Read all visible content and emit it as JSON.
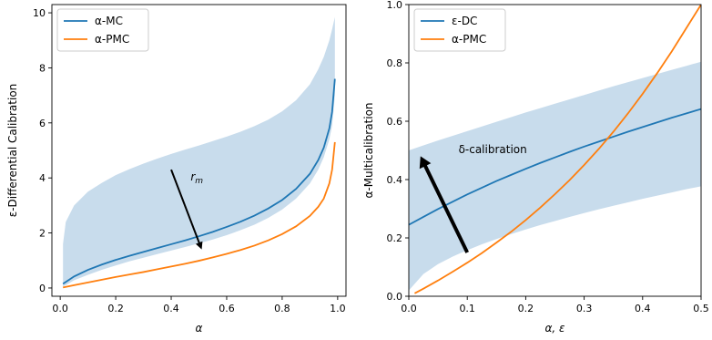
{
  "chart_data": [
    {
      "type": "line",
      "xlabel": "α",
      "ylabel": "ε-Differential Calibration",
      "xlim": [
        -0.03,
        1.03
      ],
      "ylim": [
        -0.3,
        10.3
      ],
      "xticks": [
        0.0,
        0.2,
        0.4,
        0.6,
        0.8,
        1.0
      ],
      "xtick_labels": [
        "0.0",
        "0.2",
        "0.4",
        "0.6",
        "0.8",
        "1.0"
      ],
      "yticks": [
        0,
        2,
        4,
        6,
        8,
        10
      ],
      "ytick_labels": [
        "0",
        "2",
        "4",
        "6",
        "8",
        "10"
      ],
      "grid": false,
      "legend_position": "top-left",
      "series": [
        {
          "name": "α-MC",
          "color": "#1f77b4",
          "x": [
            0.01,
            0.05,
            0.1,
            0.15,
            0.2,
            0.25,
            0.3,
            0.35,
            0.4,
            0.45,
            0.5,
            0.55,
            0.6,
            0.65,
            0.7,
            0.75,
            0.8,
            0.85,
            0.9,
            0.93,
            0.95,
            0.97,
            0.98,
            0.99
          ],
          "y": [
            0.15,
            0.42,
            0.66,
            0.85,
            1.02,
            1.17,
            1.31,
            1.45,
            1.59,
            1.73,
            1.88,
            2.04,
            2.22,
            2.41,
            2.63,
            2.89,
            3.2,
            3.6,
            4.15,
            4.65,
            5.1,
            5.8,
            6.4,
            7.6
          ]
        },
        {
          "name": "α-PMC",
          "color": "#ff7f0e",
          "x": [
            0.01,
            0.05,
            0.1,
            0.15,
            0.2,
            0.25,
            0.3,
            0.35,
            0.4,
            0.45,
            0.5,
            0.55,
            0.6,
            0.65,
            0.7,
            0.75,
            0.8,
            0.85,
            0.9,
            0.93,
            0.95,
            0.97,
            0.98,
            0.99
          ],
          "y": [
            0.02,
            0.1,
            0.2,
            0.3,
            0.4,
            0.49,
            0.58,
            0.68,
            0.78,
            0.88,
            0.99,
            1.11,
            1.24,
            1.38,
            1.54,
            1.73,
            1.96,
            2.24,
            2.62,
            2.95,
            3.25,
            3.8,
            4.3,
            5.3
          ]
        }
      ],
      "band": {
        "color": "#c8dcec",
        "x": [
          0.01,
          0.02,
          0.05,
          0.1,
          0.15,
          0.2,
          0.25,
          0.3,
          0.35,
          0.4,
          0.45,
          0.5,
          0.55,
          0.6,
          0.65,
          0.7,
          0.75,
          0.8,
          0.85,
          0.9,
          0.93,
          0.95,
          0.97,
          0.98,
          0.99
        ],
        "lower": [
          0.05,
          0.1,
          0.28,
          0.48,
          0.66,
          0.82,
          0.97,
          1.1,
          1.23,
          1.36,
          1.49,
          1.62,
          1.76,
          1.92,
          2.1,
          2.3,
          2.55,
          2.85,
          3.25,
          3.8,
          4.3,
          4.75,
          5.4,
          5.9,
          7.0
        ],
        "upper": [
          1.6,
          2.4,
          3.0,
          3.5,
          3.82,
          4.1,
          4.32,
          4.52,
          4.7,
          4.87,
          5.03,
          5.18,
          5.34,
          5.5,
          5.68,
          5.88,
          6.12,
          6.42,
          6.82,
          7.4,
          7.95,
          8.4,
          9.0,
          9.4,
          9.85
        ]
      },
      "arrow": {
        "from": [
          0.4,
          4.3
        ],
        "to": [
          0.51,
          1.4
        ]
      },
      "annotation": {
        "text": "r",
        "subscript": "m",
        "x": 0.47,
        "y": 3.9
      }
    },
    {
      "type": "line",
      "xlabel": "α, ε",
      "ylabel": "α-Multicalibration",
      "xlim": [
        0.0,
        0.5
      ],
      "ylim": [
        0.0,
        1.0
      ],
      "xticks": [
        0.0,
        0.1,
        0.2,
        0.3,
        0.4,
        0.5
      ],
      "xtick_labels": [
        "0.0",
        "0.1",
        "0.2",
        "0.3",
        "0.4",
        "0.5"
      ],
      "yticks": [
        0.0,
        0.2,
        0.4,
        0.6,
        0.8,
        1.0
      ],
      "ytick_labels": [
        "0.0",
        "0.2",
        "0.4",
        "0.6",
        "0.8",
        "1.0"
      ],
      "grid": false,
      "legend_position": "top-left",
      "series": [
        {
          "name": "ε-DC",
          "color": "#1f77b4",
          "x": [
            0.0,
            0.025,
            0.05,
            0.075,
            0.1,
            0.125,
            0.15,
            0.175,
            0.2,
            0.225,
            0.25,
            0.275,
            0.3,
            0.325,
            0.35,
            0.375,
            0.4,
            0.425,
            0.45,
            0.475,
            0.5
          ],
          "y": [
            0.245,
            0.272,
            0.299,
            0.324,
            0.349,
            0.372,
            0.395,
            0.416,
            0.437,
            0.457,
            0.476,
            0.495,
            0.513,
            0.53,
            0.547,
            0.564,
            0.58,
            0.596,
            0.612,
            0.627,
            0.642
          ]
        },
        {
          "name": "α-PMC",
          "color": "#ff7f0e",
          "x": [
            0.01,
            0.025,
            0.05,
            0.075,
            0.1,
            0.125,
            0.15,
            0.175,
            0.2,
            0.225,
            0.25,
            0.275,
            0.3,
            0.325,
            0.35,
            0.375,
            0.4,
            0.425,
            0.45,
            0.475,
            0.5
          ],
          "y": [
            0.01,
            0.026,
            0.054,
            0.084,
            0.115,
            0.148,
            0.184,
            0.221,
            0.261,
            0.304,
            0.35,
            0.398,
            0.45,
            0.505,
            0.564,
            0.627,
            0.694,
            0.765,
            0.84,
            0.92,
            1.0
          ]
        }
      ],
      "band": {
        "color": "#c8dcec",
        "x": [
          0.0,
          0.025,
          0.05,
          0.075,
          0.1,
          0.125,
          0.15,
          0.175,
          0.2,
          0.225,
          0.25,
          0.275,
          0.3,
          0.325,
          0.35,
          0.375,
          0.4,
          0.425,
          0.45,
          0.475,
          0.5
        ],
        "lower": [
          0.02,
          0.076,
          0.11,
          0.136,
          0.158,
          0.178,
          0.196,
          0.213,
          0.229,
          0.244,
          0.258,
          0.272,
          0.285,
          0.298,
          0.31,
          0.322,
          0.334,
          0.345,
          0.356,
          0.367,
          0.377
        ],
        "upper": [
          0.5,
          0.517,
          0.534,
          0.55,
          0.566,
          0.582,
          0.598,
          0.614,
          0.63,
          0.645,
          0.66,
          0.675,
          0.69,
          0.705,
          0.72,
          0.734,
          0.748,
          0.762,
          0.776,
          0.79,
          0.804
        ]
      },
      "arrow": {
        "from": [
          0.1,
          0.15
        ],
        "to": [
          0.02,
          0.48
        ]
      },
      "annotation": {
        "text": "δ-calibration",
        "x": 0.085,
        "y": 0.49
      }
    }
  ]
}
